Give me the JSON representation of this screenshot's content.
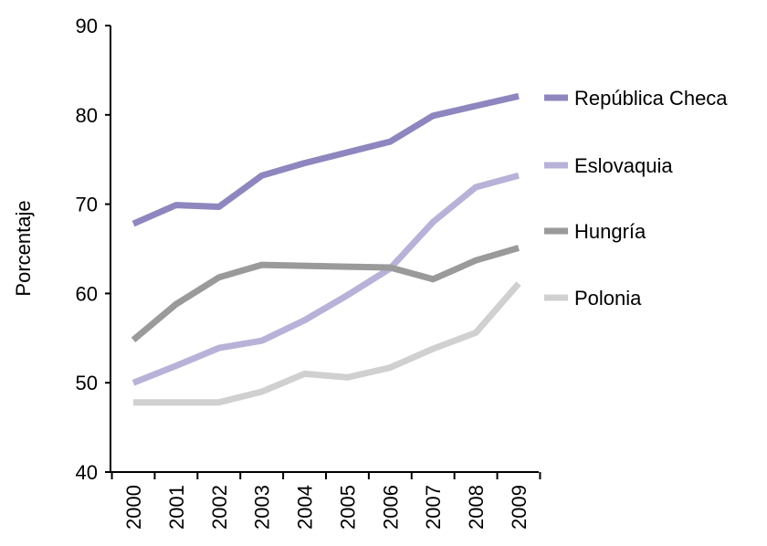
{
  "chart_data": {
    "type": "line",
    "title": "",
    "xlabel": "",
    "ylabel": "Porcentaje",
    "ylim": [
      40,
      90
    ],
    "yticks": [
      40,
      50,
      60,
      70,
      80,
      90
    ],
    "categories": [
      "2000",
      "2001",
      "2002",
      "2003",
      "2004",
      "2005",
      "2006",
      "2007",
      "2008",
      "2009"
    ],
    "grid": false,
    "legend_position": "right",
    "series": [
      {
        "name": "República Checa",
        "color": "#8e86be",
        "values": [
          67.8,
          69.9,
          69.7,
          73.2,
          74.6,
          75.8,
          77.0,
          79.9,
          81.0,
          82.1
        ]
      },
      {
        "name": "Eslovaquia",
        "color": "#b8b2d8",
        "values": [
          50.0,
          51.9,
          53.9,
          54.7,
          57.0,
          59.8,
          62.8,
          68.0,
          71.9,
          73.2
        ]
      },
      {
        "name": "Hungría",
        "color": "#9a9a9a",
        "values": [
          54.8,
          58.8,
          61.8,
          63.2,
          63.1,
          63.0,
          62.9,
          61.6,
          63.7,
          65.1
        ]
      },
      {
        "name": "Polonia",
        "color": "#d0d0d0",
        "values": [
          47.8,
          47.8,
          47.8,
          49.0,
          51.0,
          50.6,
          51.7,
          53.8,
          55.6,
          61.1
        ]
      }
    ]
  }
}
